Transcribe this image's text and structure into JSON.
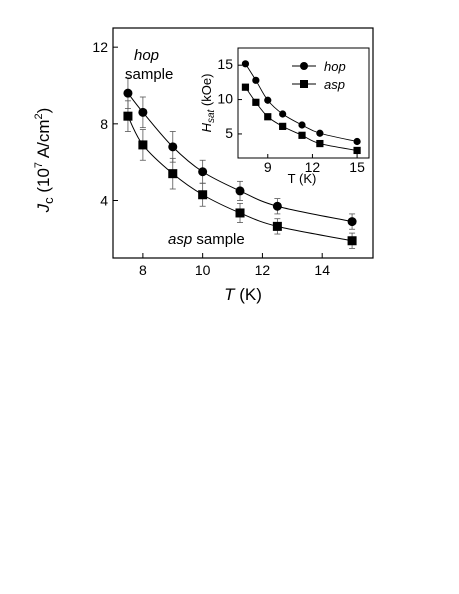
{
  "chart_data": [
    {
      "type": "scatter",
      "title": "",
      "xlabel": {
        "italic": "T",
        "rest": " (K)"
      },
      "ylabel": {
        "main": "J",
        "sub": "c",
        "unit_open": " (10",
        "exp1": "7",
        "unit_mid": " A/cm",
        "exp2": "2",
        "unit_close": ")"
      },
      "xlim": [
        7,
        15.7
      ],
      "ylim": [
        1,
        13
      ],
      "xticks": [
        8,
        10,
        12,
        14
      ],
      "yticks": [
        4,
        8,
        12
      ],
      "grid": false,
      "legend": "none",
      "annotations": [
        {
          "italic": "hop",
          "rest": "",
          "line2": "sample"
        },
        {
          "italic": "asp",
          "rest": " sample",
          "line2": ""
        }
      ],
      "series": [
        {
          "marker": "circle",
          "x": [
            7.5,
            8.0,
            9.0,
            10.0,
            11.25,
            12.5,
            15.0
          ],
          "y": [
            9.6,
            8.6,
            6.8,
            5.5,
            4.5,
            3.7,
            2.9
          ],
          "err": [
            0.8,
            0.8,
            0.8,
            0.6,
            0.5,
            0.4,
            0.4
          ]
        },
        {
          "marker": "square",
          "x": [
            7.5,
            8.0,
            9.0,
            10.0,
            11.25,
            12.5,
            15.0
          ],
          "y": [
            8.4,
            6.9,
            5.4,
            4.3,
            3.35,
            2.65,
            1.9
          ],
          "err": [
            0.8,
            0.8,
            0.8,
            0.6,
            0.5,
            0.4,
            0.4
          ]
        }
      ]
    },
    {
      "type": "scatter",
      "title": "",
      "xlabel": {
        "italic": "",
        "rest": "T (K)"
      },
      "ylabel": {
        "main": "H",
        "sub": "sat",
        "rest": " (kOe)"
      },
      "xlim": [
        7,
        15.8
      ],
      "ylim": [
        1.5,
        17.5
      ],
      "xticks": [
        9,
        12,
        15
      ],
      "yticks": [
        5,
        10,
        15
      ],
      "grid": false,
      "legend": "top-right",
      "series": [
        {
          "name": "hop",
          "marker": "circle",
          "x": [
            7.5,
            8.2,
            9.0,
            10.0,
            11.3,
            12.5,
            15.0
          ],
          "y": [
            15.2,
            12.8,
            9.9,
            7.9,
            6.3,
            5.1,
            3.9
          ]
        },
        {
          "name": "asp",
          "marker": "square",
          "x": [
            7.5,
            8.2,
            9.0,
            10.0,
            11.3,
            12.5,
            15.0
          ],
          "y": [
            11.8,
            9.6,
            7.5,
            6.1,
            4.8,
            3.6,
            2.6
          ]
        }
      ]
    }
  ]
}
